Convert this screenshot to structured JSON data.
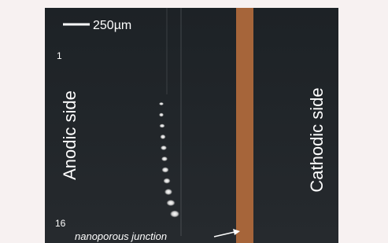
{
  "scale_bar": {
    "label": "250µm"
  },
  "labels": {
    "top_index": "1",
    "bottom_index": "16",
    "anodic": "Anodic side",
    "cathodic": "Cathodic side",
    "junction": "nanoporous junction"
  }
}
